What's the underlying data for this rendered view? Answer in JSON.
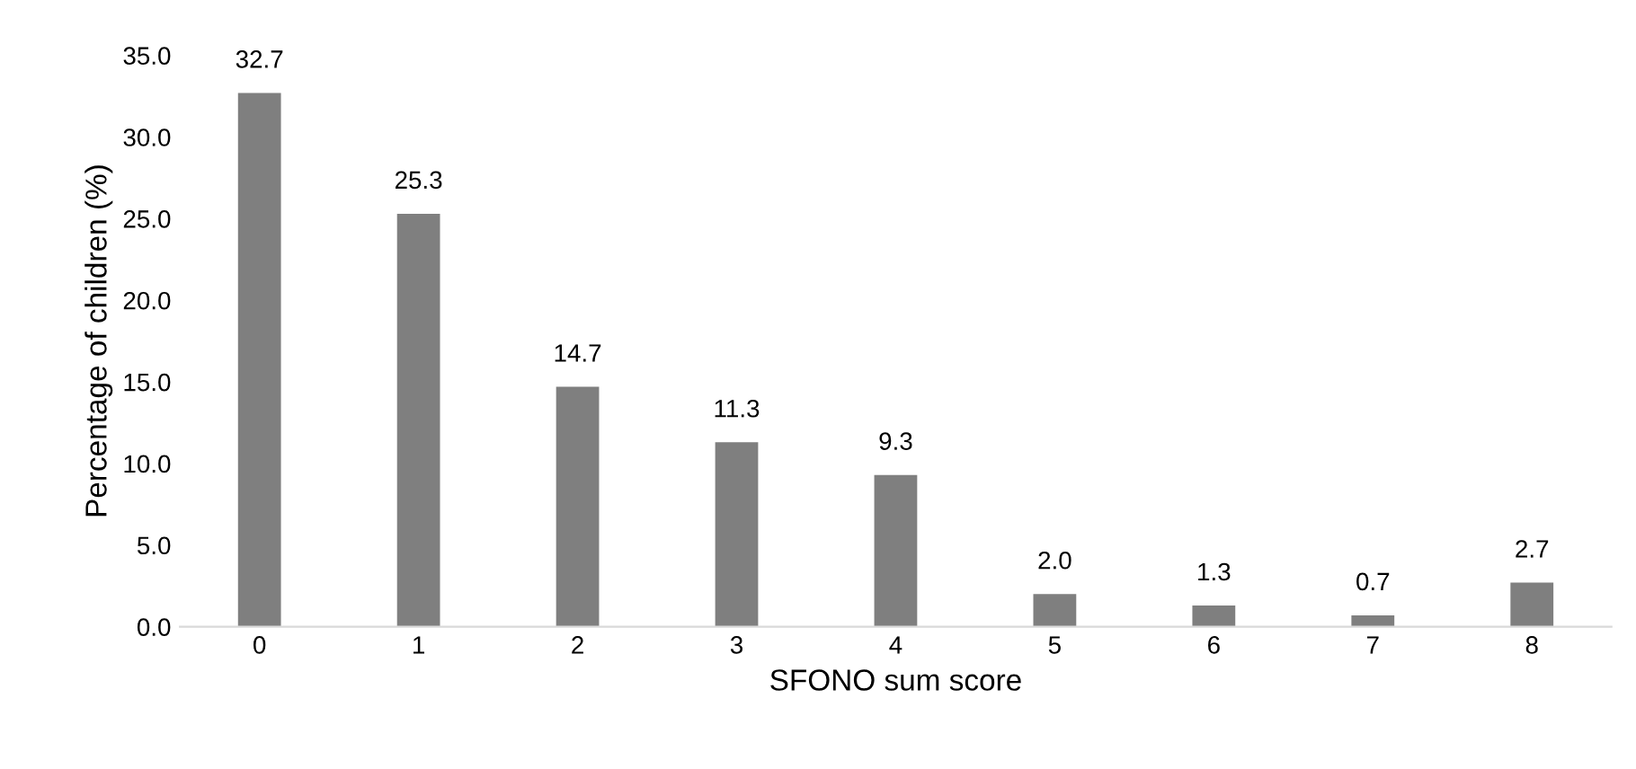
{
  "chart_data": {
    "type": "bar",
    "xlabel": "SFONO sum score",
    "ylabel": "Percentage of children (%)",
    "categories": [
      "0",
      "1",
      "2",
      "3",
      "4",
      "5",
      "6",
      "7",
      "8"
    ],
    "values": [
      32.7,
      25.3,
      14.7,
      11.3,
      9.3,
      2.0,
      1.3,
      0.7,
      2.7
    ],
    "color": "#7f7f7f",
    "value_labels": [
      "32.7",
      "25.3",
      "14.7",
      "11.3",
      "9.3",
      "2.0",
      "1.3",
      "0.7",
      "2.7"
    ],
    "grid": false,
    "legend": false,
    "ylim": [
      0,
      35
    ],
    "yticks": [
      {
        "value": 0,
        "label": "0.0"
      },
      {
        "value": 5,
        "label": "5.0"
      },
      {
        "value": 10,
        "label": "10.0"
      },
      {
        "value": 15,
        "label": "15.0"
      },
      {
        "value": 20,
        "label": "20.0"
      },
      {
        "value": 25,
        "label": "25.0"
      },
      {
        "value": 30,
        "label": "30.0"
      },
      {
        "value": 35,
        "label": "35.0"
      }
    ]
  }
}
